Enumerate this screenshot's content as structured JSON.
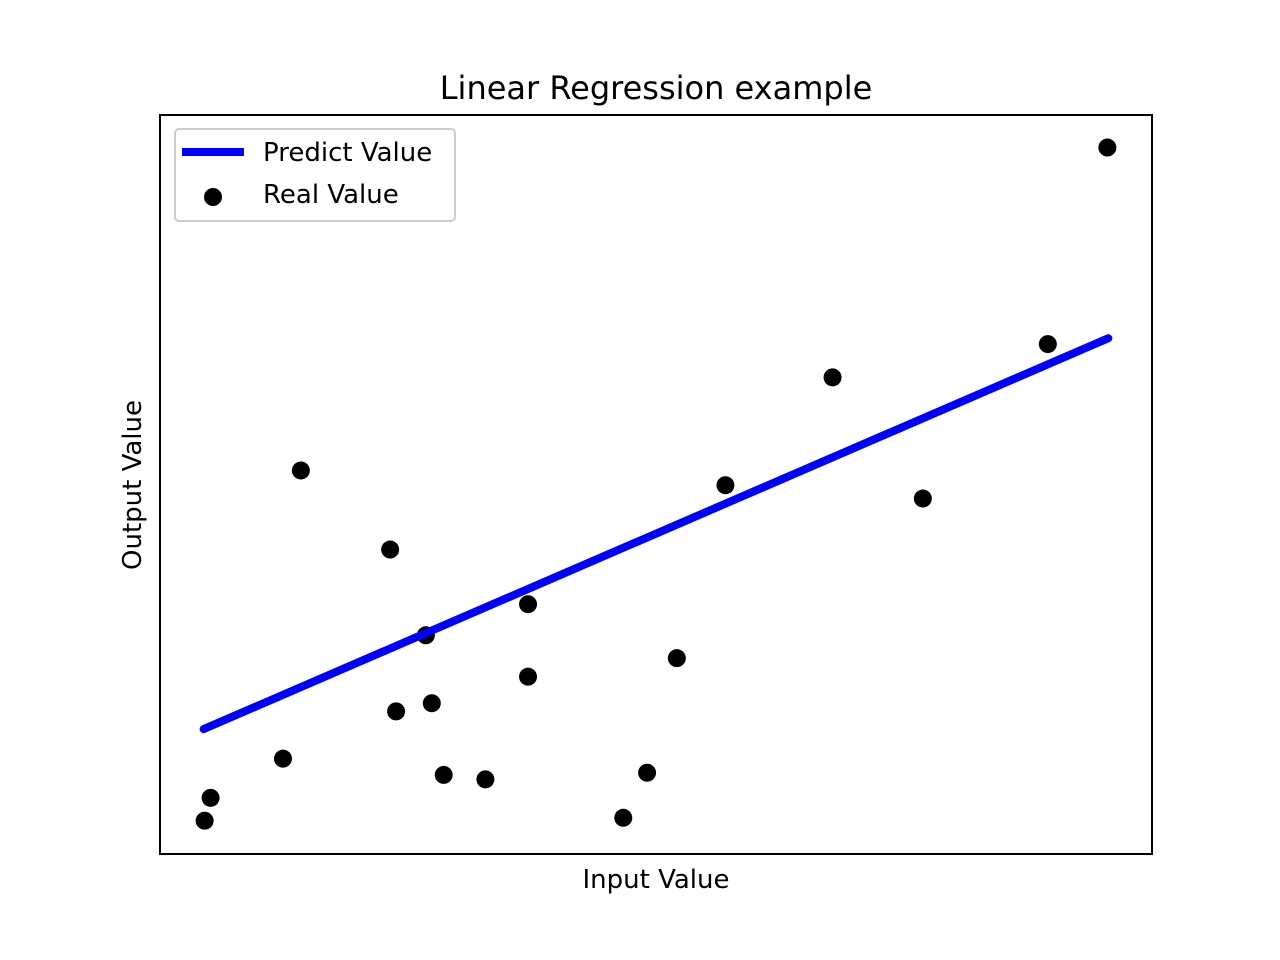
{
  "chart_data": {
    "type": "scatter",
    "title": "Linear Regression example",
    "xlabel": "Input Value",
    "ylabel": "Output Value",
    "xticks_visible": false,
    "yticks_visible": false,
    "grid": false,
    "legend_position": "top-left",
    "xlim": [
      0,
      100
    ],
    "ylim": [
      0,
      100
    ],
    "series": [
      {
        "name": "Predict Value",
        "kind": "line",
        "color": "#0000ff",
        "x": [
          4.4,
          95.6
        ],
        "y": [
          16.9,
          69.8
        ]
      },
      {
        "name": "Real Value",
        "kind": "scatter",
        "color": "#000000",
        "x": [
          4.5,
          5.1,
          12.4,
          14.2,
          23.2,
          23.8,
          26.8,
          27.4,
          28.6,
          32.8,
          37.1,
          37.1,
          46.7,
          49.1,
          52.1,
          57.0,
          67.8,
          76.9,
          89.5,
          95.5
        ],
        "y": [
          4.5,
          7.6,
          12.9,
          51.9,
          41.2,
          19.3,
          29.6,
          20.4,
          10.7,
          10.1,
          33.8,
          24.0,
          4.9,
          11.0,
          26.5,
          49.9,
          64.5,
          48.1,
          69.0,
          95.6
        ]
      }
    ]
  }
}
